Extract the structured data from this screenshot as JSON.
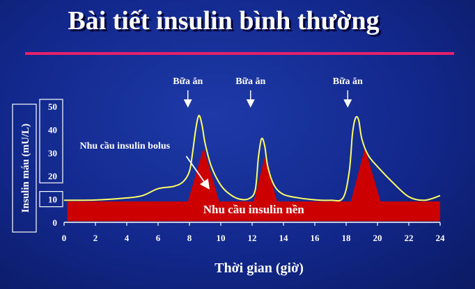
{
  "slide": {
    "title": "Bài tiết insulin bình thường",
    "accent_color": "#e8206a",
    "background_color": "#12288c"
  },
  "chart_data": {
    "type": "area",
    "xlabel": "Thời gian (giờ)",
    "ylabel": "Insulin máu (mU/L)",
    "xlim": [
      0,
      24
    ],
    "ylim": [
      0,
      50
    ],
    "x_ticks": [
      0,
      2,
      4,
      6,
      8,
      10,
      12,
      14,
      16,
      18,
      20,
      22,
      24
    ],
    "y_ticks": [
      0,
      10,
      20,
      30,
      40,
      50
    ],
    "grid": false,
    "basal": {
      "label": "Nhu cầu insulin nền",
      "value": 9,
      "color": "#cc0000"
    },
    "bolus": {
      "label": "Nhu cầu insulin bolus",
      "color": "#cc0000",
      "peaks": [
        {
          "start": 7.9,
          "peak_x": 8.9,
          "peak_y": 32,
          "end": 9.9
        },
        {
          "start": 12.1,
          "peak_x": 12.8,
          "peak_y": 28,
          "end": 13.6
        },
        {
          "start": 18.3,
          "peak_x": 19.2,
          "peak_y": 32,
          "end": 20.2
        }
      ]
    },
    "meals": [
      {
        "label": "Bữa ăn",
        "x": 7.9
      },
      {
        "label": "Bữa ăn",
        "x": 11.9
      },
      {
        "label": "Bữa ăn",
        "x": 18.1
      }
    ],
    "series": [
      {
        "color": "#ffff66",
        "x": [
          0,
          2,
          4,
          5,
          6,
          7,
          7.6,
          8,
          8.2,
          8.4,
          8.6,
          8.8,
          9,
          9.4,
          10,
          10.6,
          11.2,
          11.8,
          12.2,
          12.4,
          12.6,
          12.8,
          13,
          13.4,
          14,
          15,
          16,
          17,
          17.8,
          18.2,
          18.4,
          18.6,
          18.8,
          19,
          19.4,
          20,
          21,
          22,
          23,
          24
        ],
        "values": [
          9.5,
          9.6,
          10.5,
          11.5,
          14.5,
          15.5,
          17.5,
          22,
          30,
          40,
          46,
          42,
          34,
          24,
          16,
          12,
          10,
          10.2,
          14,
          28,
          36,
          33,
          24,
          16,
          12,
          10.5,
          9.7,
          9.5,
          10.5,
          22,
          38,
          45,
          44,
          36,
          29,
          24,
          17,
          11,
          9.5,
          11.5
        ]
      }
    ],
    "annotation_arrow": {
      "from_x": 7.8,
      "from_y": 28.5,
      "to_x": 9.2,
      "to_y": 15
    }
  }
}
